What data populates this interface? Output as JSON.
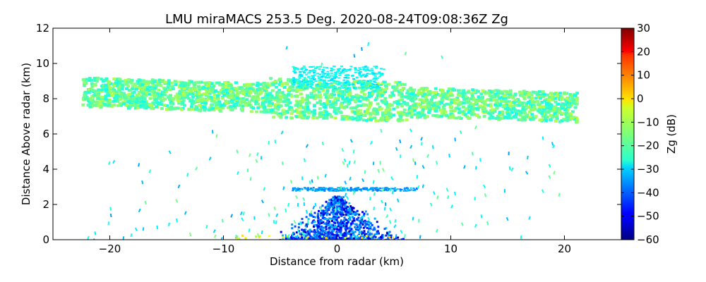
{
  "chart_data": {
    "type": "heatmap",
    "title": "LMU miraMACS 253.5 Deg. 2020-08-24T09:08:36Z  Zg",
    "xlabel": "Distance from radar (km)",
    "ylabel": "Distance Above radar  (km)",
    "colorbar_label": "Zg (dB)",
    "xlim": [
      -25,
      25
    ],
    "ylim": [
      0,
      12
    ],
    "clim": [
      -60,
      30
    ],
    "x_ticks": [
      -20,
      -10,
      0,
      10,
      20
    ],
    "x_tick_labels": [
      "−20",
      "−10",
      "0",
      "10",
      "20"
    ],
    "y_ticks": [
      0,
      2,
      4,
      6,
      8,
      10,
      12
    ],
    "y_tick_labels": [
      "0",
      "2",
      "4",
      "6",
      "8",
      "10",
      "12"
    ],
    "colorbar_ticks": [
      -60,
      -50,
      -40,
      -30,
      -20,
      -10,
      0,
      10,
      20,
      30
    ],
    "colorbar_tick_labels": [
      "−60",
      "−50",
      "−40",
      "−30",
      "−20",
      "−10",
      "0",
      "10",
      "20",
      "30"
    ],
    "colormap": "jet",
    "regions": [
      {
        "name": "main-cloud-layer",
        "x_range": [
          -22.5,
          21
        ],
        "y_range": [
          6.6,
          9.4
        ],
        "zg_range": [
          -25,
          -10
        ]
      },
      {
        "name": "cloud-top-streaks",
        "x_range": [
          -4,
          4
        ],
        "y_range": [
          8.6,
          9.9
        ],
        "zg_range": [
          -30,
          -22
        ]
      },
      {
        "name": "thin-layer",
        "x_range": [
          -4,
          7
        ],
        "y_range": [
          2.8,
          3.0
        ],
        "zg_range": [
          -40,
          -30
        ]
      },
      {
        "name": "near-ground-clutter",
        "x_range": [
          -6,
          6
        ],
        "y_range": [
          0,
          2.5
        ],
        "zg_range": [
          -55,
          -30
        ]
      }
    ]
  }
}
